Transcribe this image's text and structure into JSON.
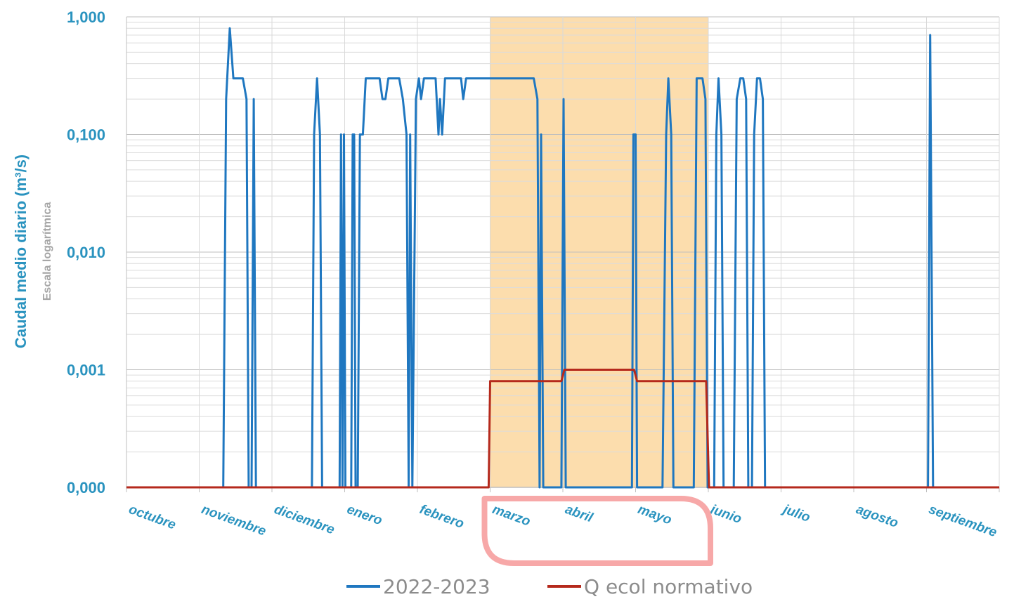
{
  "chart_data": {
    "type": "line",
    "title": "",
    "ylabel": "Caudal medio diario (m³/s)",
    "ylabel_note": "Escala logarítmica",
    "xlabel": "",
    "y_scale": "log",
    "ylim": [
      0.0001,
      1.0
    ],
    "y_ticks": [
      {
        "value": 1.0,
        "label": "1,000"
      },
      {
        "value": 0.1,
        "label": "0,100"
      },
      {
        "value": 0.01,
        "label": "0,010"
      },
      {
        "value": 0.001,
        "label": "0,001"
      },
      {
        "value": 0.0001,
        "label": "0,000"
      }
    ],
    "categories": [
      "octubre",
      "noviembre",
      "diciembre",
      "enero",
      "febrero",
      "marzo",
      "abril",
      "mayo",
      "junio",
      "julio",
      "agosto",
      "septiembre"
    ],
    "x_unit": "months since start of hydrological year (0 = 1 octubre)",
    "xlim": [
      0,
      12
    ],
    "grid": true,
    "legend_position": "bottom",
    "highlight": {
      "x_from": 5,
      "x_to": 8,
      "label": "marzo–mayo",
      "color": "#fcd9a4"
    },
    "callout": {
      "months": [
        "marzo",
        "abril",
        "mayo"
      ],
      "color": "#f7a8a8"
    },
    "series": [
      {
        "name": "2022-2023",
        "color": "#1f77c0",
        "points": [
          [
            0,
            0.0001
          ],
          [
            1.33,
            0.0001
          ],
          [
            1.37,
            0.2
          ],
          [
            1.42,
            0.8
          ],
          [
            1.47,
            0.3
          ],
          [
            1.6,
            0.3
          ],
          [
            1.65,
            0.2
          ],
          [
            1.68,
            0.0001
          ],
          [
            1.72,
            0.0001
          ],
          [
            1.75,
            0.2
          ],
          [
            1.78,
            0.0001
          ],
          [
            2.55,
            0.0001
          ],
          [
            2.58,
            0.1
          ],
          [
            2.62,
            0.3
          ],
          [
            2.66,
            0.1
          ],
          [
            2.69,
            0.0001
          ],
          [
            2.93,
            0.0001
          ],
          [
            2.95,
            0.1
          ],
          [
            2.97,
            0.0001
          ],
          [
            2.99,
            0.1
          ],
          [
            3.01,
            0.0001
          ],
          [
            3.09,
            0.0001
          ],
          [
            3.11,
            0.1
          ],
          [
            3.13,
            0.1
          ],
          [
            3.15,
            0.0001
          ],
          [
            3.18,
            0.0001
          ],
          [
            3.21,
            0.1
          ],
          [
            3.25,
            0.1
          ],
          [
            3.29,
            0.3
          ],
          [
            3.48,
            0.3
          ],
          [
            3.52,
            0.2
          ],
          [
            3.56,
            0.2
          ],
          [
            3.6,
            0.3
          ],
          [
            3.75,
            0.3
          ],
          [
            3.8,
            0.2
          ],
          [
            3.85,
            0.1
          ],
          [
            3.88,
            0.0001
          ],
          [
            3.9,
            0.1
          ],
          [
            3.93,
            0.0001
          ],
          [
            3.98,
            0.2
          ],
          [
            4.02,
            0.3
          ],
          [
            4.05,
            0.2
          ],
          [
            4.09,
            0.3
          ],
          [
            4.25,
            0.3
          ],
          [
            4.29,
            0.1
          ],
          [
            4.31,
            0.2
          ],
          [
            4.34,
            0.1
          ],
          [
            4.38,
            0.3
          ],
          [
            4.6,
            0.3
          ],
          [
            4.63,
            0.2
          ],
          [
            4.67,
            0.3
          ],
          [
            5.6,
            0.3
          ],
          [
            5.65,
            0.2
          ],
          [
            5.68,
            0.0001
          ],
          [
            5.7,
            0.1
          ],
          [
            5.73,
            0.0001
          ],
          [
            5.98,
            0.0001
          ],
          [
            6.01,
            0.2
          ],
          [
            6.04,
            0.0001
          ],
          [
            6.95,
            0.0001
          ],
          [
            6.97,
            0.1
          ],
          [
            7.0,
            0.1
          ],
          [
            7.02,
            0.0001
          ],
          [
            7.37,
            0.0001
          ],
          [
            7.42,
            0.1
          ],
          [
            7.45,
            0.3
          ],
          [
            7.49,
            0.1
          ],
          [
            7.52,
            0.0001
          ],
          [
            7.8,
            0.0001
          ],
          [
            7.84,
            0.3
          ],
          [
            7.92,
            0.3
          ],
          [
            7.96,
            0.2
          ],
          [
            7.99,
            0.0001
          ],
          [
            8.08,
            0.0001
          ],
          [
            8.11,
            0.1
          ],
          [
            8.14,
            0.3
          ],
          [
            8.18,
            0.1
          ],
          [
            8.21,
            0.0001
          ],
          [
            8.35,
            0.0001
          ],
          [
            8.39,
            0.2
          ],
          [
            8.44,
            0.3
          ],
          [
            8.48,
            0.3
          ],
          [
            8.52,
            0.2
          ],
          [
            8.55,
            0.0001
          ],
          [
            8.6,
            0.0001
          ],
          [
            8.63,
            0.1
          ],
          [
            8.67,
            0.3
          ],
          [
            8.71,
            0.3
          ],
          [
            8.75,
            0.2
          ],
          [
            8.78,
            0.0001
          ],
          [
            11.02,
            0.0001
          ],
          [
            11.05,
            0.7
          ],
          [
            11.09,
            0.0001
          ],
          [
            12,
            0.0001
          ]
        ]
      },
      {
        "name": "Q ecol normativo",
        "color": "#b5291c",
        "points": [
          [
            0,
            0.0001
          ],
          [
            4.98,
            0.0001
          ],
          [
            5.0,
            0.0008
          ],
          [
            5.98,
            0.0008
          ],
          [
            6.02,
            0.001
          ],
          [
            6.98,
            0.001
          ],
          [
            7.02,
            0.0008
          ],
          [
            7.97,
            0.0008
          ],
          [
            8.01,
            0.0001
          ],
          [
            12,
            0.0001
          ]
        ]
      }
    ]
  }
}
